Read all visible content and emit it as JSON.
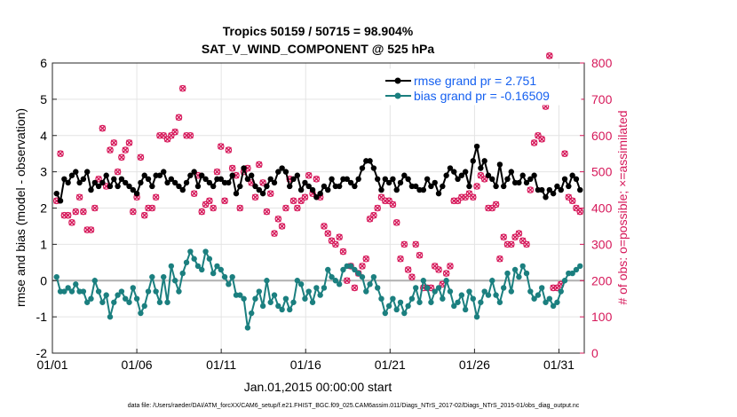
{
  "chart_data": {
    "type": "line",
    "title_line1": "Tropics 50159 / 50715 = 98.904%",
    "title_line2": "SAT_V_WIND_COMPONENT @ 525 hPa",
    "xlabel": "Jan.01,2015 00:00:00 start",
    "ylabel_left": "rmse and bias (model - observation)",
    "ylabel_right": "# of obs: o=possible; ×=assimilated",
    "footer": "data file: /Users/raeder/DAI/ATM_forcXX/CAM6_setup/f.e21.FHIST_BGC.f09_025.CAM6assim.011/Diags_NTrS_2017-02/Diags_NTrS_2015-01/obs_diag_output.nc",
    "xlim": [
      0,
      31.5
    ],
    "ylim_left": [
      -2,
      6
    ],
    "ylim_right": [
      0,
      800
    ],
    "xticks": [
      0,
      5,
      10,
      15,
      20,
      25,
      30
    ],
    "xtick_labels": [
      "01/01",
      "01/06",
      "01/11",
      "01/16",
      "01/21",
      "01/26",
      "01/31"
    ],
    "yticks_left": [
      -2,
      -1,
      0,
      1,
      2,
      3,
      4,
      5,
      6
    ],
    "yticks_right": [
      0,
      100,
      200,
      300,
      400,
      500,
      600,
      700,
      800
    ],
    "grid": true,
    "zero_line": 0,
    "colors": {
      "rmse": "#000000",
      "bias": "#1b7f7f",
      "obs": "#d6185a",
      "zero": "#b0b0b0",
      "grid": "#e4e4e4",
      "legend_text": "#1560f0"
    },
    "series": [
      {
        "name": "rmse grand pr = 2.751",
        "axis": "left",
        "values": [
          2.4,
          2.2,
          2.8,
          2.7,
          2.9,
          3.0,
          2.7,
          2.8,
          3.0,
          2.5,
          2.7,
          2.6,
          2.7,
          2.9,
          2.6,
          2.8,
          2.6,
          2.8,
          2.7,
          2.6,
          2.5,
          2.4,
          2.7,
          2.9,
          2.8,
          2.6,
          2.9,
          2.9,
          3.0,
          2.7,
          2.8,
          2.7,
          2.6,
          2.5,
          2.7,
          2.9,
          3.0,
          2.6,
          2.9,
          2.8,
          2.7,
          2.6,
          2.8,
          2.8,
          2.7,
          2.7,
          2.9,
          2.4,
          2.6,
          3.1,
          2.8,
          2.9,
          2.6,
          2.5,
          2.4,
          2.6,
          2.8,
          2.7,
          3.0,
          3.1,
          3.0,
          2.6,
          2.8,
          2.9,
          2.5,
          2.7,
          2.6,
          2.5,
          2.3,
          2.4,
          2.6,
          2.5,
          2.8,
          2.6,
          2.6,
          2.8,
          2.8,
          2.7,
          2.6,
          2.8,
          3.1,
          3.3,
          3.3,
          3.1,
          2.8,
          2.5,
          2.8,
          2.7,
          2.8,
          2.5,
          2.7,
          2.9,
          2.8,
          2.6,
          2.6,
          2.5,
          2.5,
          2.8,
          2.6,
          2.7,
          2.4,
          2.6,
          2.9,
          3.1,
          3.0,
          2.8,
          2.9,
          3.0,
          2.6,
          3.3,
          3.7,
          3.1,
          3.3,
          2.9,
          2.8,
          2.6,
          3.2,
          2.6,
          2.8,
          3.0,
          2.7,
          2.7,
          2.9,
          2.7,
          2.8,
          2.9,
          2.5,
          2.5,
          2.3,
          2.5,
          2.4,
          2.6,
          2.5,
          2.8,
          2.6,
          2.9,
          2.8,
          2.5
        ]
      },
      {
        "name": "bias grand pr = -0.16509",
        "axis": "left",
        "values": [
          0.1,
          -0.3,
          -0.3,
          -0.2,
          -0.3,
          -0.1,
          -0.3,
          -0.3,
          -0.6,
          -0.5,
          0.0,
          -0.3,
          -0.6,
          -0.4,
          -1.0,
          -0.6,
          -0.4,
          -0.3,
          -0.5,
          -0.6,
          -0.2,
          -0.5,
          -0.9,
          -0.7,
          -0.3,
          0.1,
          -0.3,
          -0.6,
          0.1,
          -0.6,
          0.4,
          0.0,
          -0.3,
          0.2,
          0.5,
          0.8,
          0.6,
          0.4,
          0.3,
          0.8,
          0.6,
          0.2,
          0.4,
          0.3,
          0.1,
          -0.1,
          0.1,
          -0.4,
          -0.4,
          -0.5,
          -1.3,
          -0.9,
          -0.5,
          -0.3,
          -0.7,
          0.0,
          -0.6,
          -0.4,
          -0.7,
          -0.8,
          -0.5,
          -0.8,
          -0.6,
          0.0,
          -0.1,
          -0.5,
          -0.3,
          -0.6,
          -0.2,
          -0.4,
          -0.2,
          0.3,
          0.1,
          0.0,
          -0.1,
          0.3,
          0.4,
          0.4,
          0.3,
          0.2,
          0.1,
          -0.3,
          -0.1,
          0.1,
          -0.2,
          -0.5,
          -0.9,
          -0.7,
          -0.5,
          -0.8,
          -0.6,
          -0.9,
          -0.7,
          -0.5,
          -0.2,
          -0.6,
          0.0,
          -0.2,
          -0.6,
          -0.3,
          -0.2,
          -0.5,
          0.0,
          -0.3,
          -0.7,
          -0.6,
          -0.4,
          -0.8,
          -0.3,
          -0.5,
          -1.0,
          -0.6,
          -0.3,
          -0.4,
          0.0,
          -0.4,
          -0.6,
          -0.2,
          0.2,
          -0.3,
          0.3,
          0.1,
          0.4,
          0.2,
          -0.3,
          -0.5,
          -0.4,
          -0.2,
          -0.6,
          -0.5,
          -0.7,
          -0.6,
          -0.3,
          0.0,
          0.2,
          0.2,
          0.3,
          0.4
        ]
      },
      {
        "name": "obs possible/assimilated",
        "axis": "right",
        "values": [
          420,
          550,
          380,
          380,
          360,
          390,
          430,
          390,
          340,
          340,
          400,
          480,
          620,
          460,
          560,
          580,
          500,
          540,
          560,
          580,
          390,
          430,
          540,
          380,
          400,
          400,
          430,
          600,
          600,
          590,
          600,
          610,
          650,
          730,
          600,
          600,
          440,
          490,
          390,
          410,
          420,
          400,
          500,
          570,
          420,
          560,
          510,
          490,
          400,
          500,
          510,
          470,
          430,
          520,
          470,
          390,
          440,
          330,
          370,
          350,
          400,
          480,
          420,
          400,
          420,
          430,
          490,
          440,
          480,
          430,
          350,
          330,
          310,
          300,
          320,
          280,
          200,
          240,
          180,
          220,
          240,
          260,
          370,
          380,
          400,
          430,
          420,
          420,
          410,
          360,
          260,
          300,
          230,
          210,
          300,
          270,
          180,
          180,
          180,
          240,
          230,
          190,
          220,
          240,
          420,
          420,
          430,
          430,
          440,
          430,
          460,
          490,
          480,
          400,
          400,
          410,
          260,
          320,
          300,
          300,
          320,
          330,
          310,
          300,
          450,
          580,
          600,
          590,
          680,
          820,
          180,
          180,
          190,
          550,
          430,
          420,
          400,
          390
        ]
      }
    ]
  }
}
